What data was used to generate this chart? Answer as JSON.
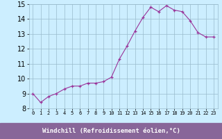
{
  "x": [
    0,
    1,
    2,
    3,
    4,
    5,
    6,
    7,
    8,
    9,
    10,
    11,
    12,
    13,
    14,
    15,
    16,
    17,
    18,
    19,
    20,
    21,
    22,
    23
  ],
  "y": [
    9.0,
    8.4,
    8.8,
    9.0,
    9.3,
    9.5,
    9.5,
    9.7,
    9.7,
    9.8,
    10.1,
    11.3,
    12.2,
    13.2,
    14.1,
    14.8,
    14.5,
    14.9,
    14.6,
    14.5,
    13.9,
    13.1,
    12.8,
    12.8
  ],
  "bg_color": "#cceeff",
  "line_color": "#993399",
  "marker_color": "#993399",
  "grid_color": "#99bbcc",
  "xlabel": "Windchill (Refroidissement éolien,°C)",
  "xlabel_bg": "#886699",
  "xlabel_fg": "#ffffff",
  "ylim": [
    8,
    15
  ],
  "yticks": [
    8,
    9,
    10,
    11,
    12,
    13,
    14,
    15
  ],
  "xticks": [
    0,
    1,
    2,
    3,
    4,
    5,
    6,
    7,
    8,
    9,
    10,
    11,
    12,
    13,
    14,
    15,
    16,
    17,
    18,
    19,
    20,
    21,
    22,
    23
  ],
  "axis_fontsize": 7,
  "label_fontsize": 6.5
}
